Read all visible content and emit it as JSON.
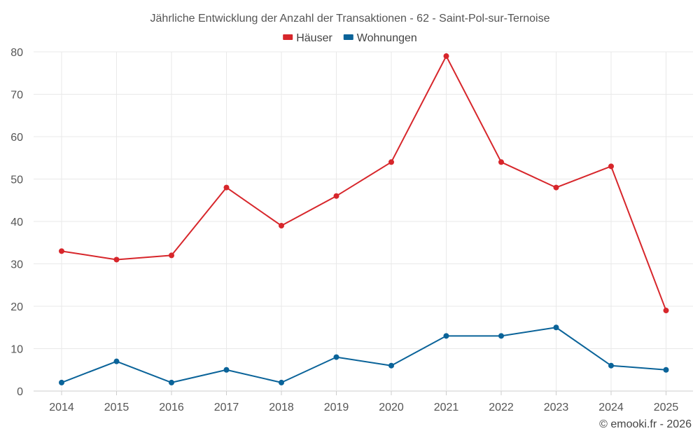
{
  "chart_data": {
    "type": "line",
    "title": "Jährliche Entwicklung der Anzahl der Transaktionen - 62 - Saint-Pol-sur-Ternoise",
    "categories": [
      "2014",
      "2015",
      "2016",
      "2017",
      "2018",
      "2019",
      "2020",
      "2021",
      "2022",
      "2023",
      "2024",
      "2025"
    ],
    "series": [
      {
        "name": "Häuser",
        "color": "#d7262b",
        "values": [
          33,
          31,
          32,
          48,
          39,
          46,
          54,
          79,
          54,
          48,
          53,
          19
        ]
      },
      {
        "name": "Wohnungen",
        "color": "#0a6399",
        "values": [
          2,
          7,
          2,
          5,
          2,
          8,
          6,
          13,
          13,
          15,
          6,
          5
        ]
      }
    ],
    "xlabel": "",
    "ylabel": "",
    "ylim": [
      0,
      80
    ],
    "yticks": [
      0,
      10,
      20,
      30,
      40,
      50,
      60,
      70,
      80
    ],
    "grid": true,
    "legend": "top-center"
  },
  "credit": "© emooki.fr - 2026"
}
